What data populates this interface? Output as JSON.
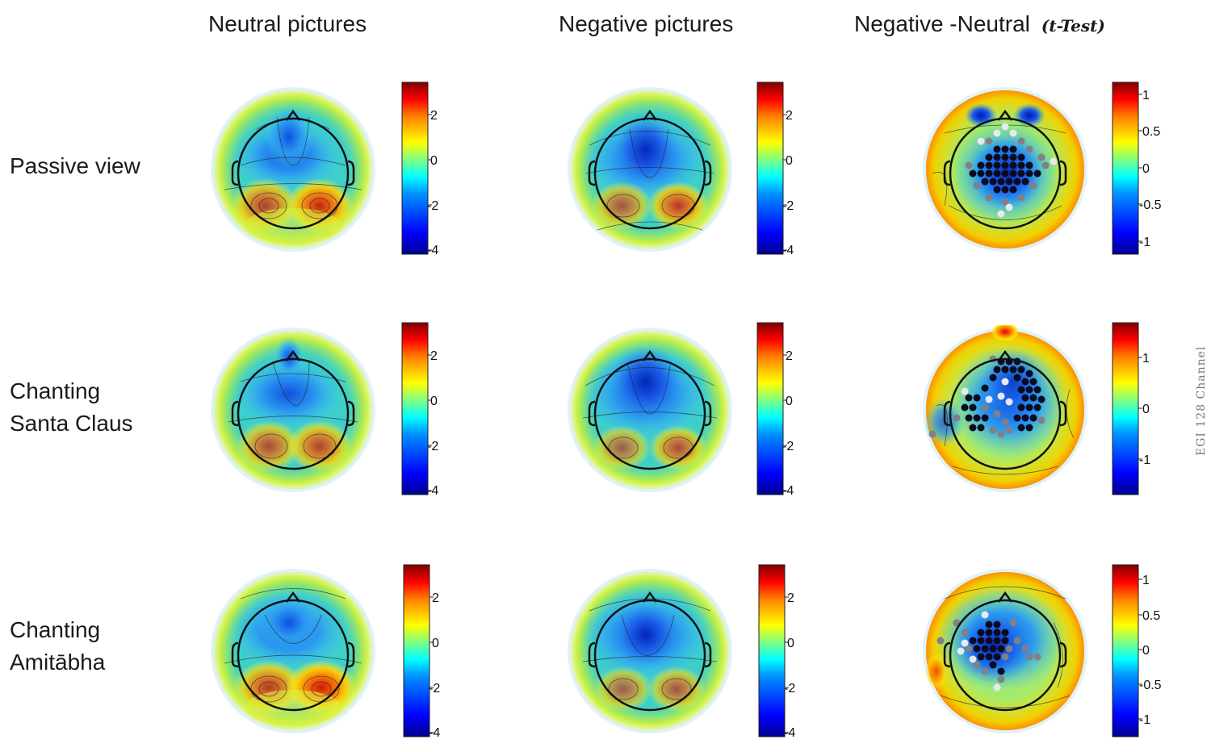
{
  "column_titles": {
    "neutral": "Neutral pictures",
    "negative": "Negative pictures",
    "difference": "Negative -Neutral",
    "difference_note": "(t-Test)"
  },
  "row_labels": {
    "passive": "Passive view",
    "santa_line1": "Chanting",
    "santa_line2": "Santa Claus",
    "amitabha_line1": "Chanting",
    "amitabha_line2": "Amitābha"
  },
  "side_label": "EGI 128 Channel",
  "colorbars": {
    "amplitude": {
      "ticks": [
        "2",
        "0",
        "-2",
        "-4"
      ],
      "values": [
        2,
        0,
        -2,
        -4
      ],
      "range": [
        -4,
        3.5
      ]
    },
    "t_row1": {
      "ticks": [
        "1",
        "0.5",
        "0",
        "-0.5",
        "-1"
      ],
      "values": [
        1,
        0.5,
        0,
        -0.5,
        -1
      ],
      "range": [
        -1.2,
        1.2
      ]
    },
    "t_row2": {
      "ticks": [
        "1",
        "0",
        "-1"
      ],
      "values": [
        1,
        0,
        -1
      ],
      "range": [
        -1.7,
        1.7
      ]
    },
    "t_row3": {
      "ticks": [
        "1",
        "0.5",
        "0",
        "-0.5",
        "-1"
      ],
      "values": [
        1,
        0.5,
        0,
        -0.5,
        -1
      ],
      "range": [
        -1.2,
        1.2
      ]
    }
  },
  "colors": {
    "jet": [
      "#00008f",
      "#0000ff",
      "#0080ff",
      "#00ffff",
      "#80ff80",
      "#ffff00",
      "#ff8000",
      "#ff0000",
      "#800000"
    ],
    "scalp_base": "#3fd0cc",
    "head_outline": "#111111"
  }
}
